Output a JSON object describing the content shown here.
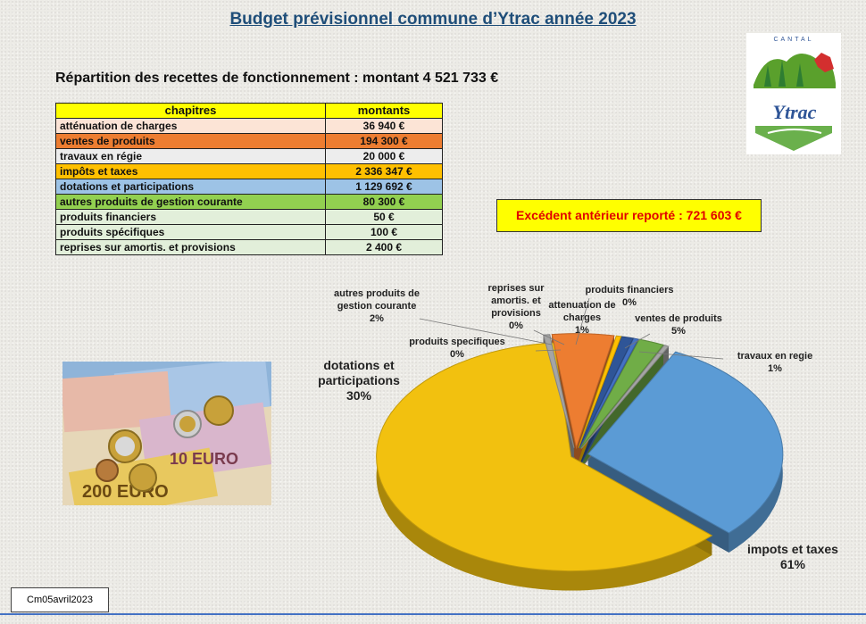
{
  "header": {
    "title": "Budget prévisionnel commune d’Ytrac année 2023",
    "subtitle": "Répartition des recettes de fonctionnement :  montant 4 521 733 €"
  },
  "table": {
    "col_chapitres": "chapitres",
    "col_montants": "montants",
    "rows": [
      {
        "label": "atténuation de charges",
        "amount": "36 940 €",
        "color": "#fce4d6"
      },
      {
        "label": "ventes de produits",
        "amount": "194 300 €",
        "color": "#ed7d31"
      },
      {
        "label": "travaux en régie",
        "amount": "20 000 €",
        "color": "#ededed"
      },
      {
        "label": "impôts et taxes",
        "amount": "2 336 347 €",
        "color": "#ffc000"
      },
      {
        "label": "dotations et participations",
        "amount": "1 129 692 €",
        "color": "#9dc3e6"
      },
      {
        "label": "autres produits de gestion courante",
        "amount": "80 300 €",
        "color": "#92d050"
      },
      {
        "label": "produits financiers",
        "amount": "50 €",
        "color": "#e2efda"
      },
      {
        "label": "produits spécifiques",
        "amount": "100 €",
        "color": "#e2efda"
      },
      {
        "label": "reprises sur amortis. et provisions",
        "amount": "2 400 €",
        "color": "#e2efda"
      }
    ]
  },
  "excedent": "Excédent antérieur reporté : 721 603 €",
  "logo": {
    "text_top": "CANTAL",
    "text_main": "Ytrac"
  },
  "footer": {
    "stamp": "Cm05avril2023"
  },
  "chart_data": {
    "type": "pie",
    "title": "",
    "slices": [
      {
        "name": "impots et taxes",
        "label_lines": [
          "impots et taxes"
        ],
        "percent_text": "61%",
        "value": 2336347,
        "color": "#f2c10f"
      },
      {
        "name": "dotations et participations",
        "label_lines": [
          "dotations et",
          "participations"
        ],
        "percent_text": "30%",
        "value": 1129692,
        "color": "#5b9bd5"
      },
      {
        "name": "produits spécifiques",
        "label_lines": [
          "produits specifiques"
        ],
        "percent_text": "0%",
        "value": 100,
        "color": "#a5a5a5"
      },
      {
        "name": "autres produits de gestion courante",
        "label_lines": [
          "autres produits de",
          "gestion courante"
        ],
        "percent_text": "2%",
        "value": 80300,
        "color": "#70ad47"
      },
      {
        "name": "reprises sur amortis. et provisions",
        "label_lines": [
          "reprises sur",
          "amortis. et",
          "provisions"
        ],
        "percent_text": "0%",
        "value": 2400,
        "color": "#4472c4"
      },
      {
        "name": "attenuation de charges",
        "label_lines": [
          "attenuation de",
          "charges"
        ],
        "percent_text": "1%",
        "value": 36940,
        "color": "#2f5597"
      },
      {
        "name": "produits financiers",
        "label_lines": [
          "produits financiers"
        ],
        "percent_text": "0%",
        "value": 50,
        "color": "#ffc000"
      },
      {
        "name": "ventes de produits",
        "label_lines": [
          "ventes de produits"
        ],
        "percent_text": "5%",
        "value": 194300,
        "color": "#ed7d31"
      },
      {
        "name": "travaux en regie",
        "label_lines": [
          "travaux en regie"
        ],
        "percent_text": "1%",
        "value": 20000,
        "color": "#a5a5a5"
      }
    ]
  }
}
